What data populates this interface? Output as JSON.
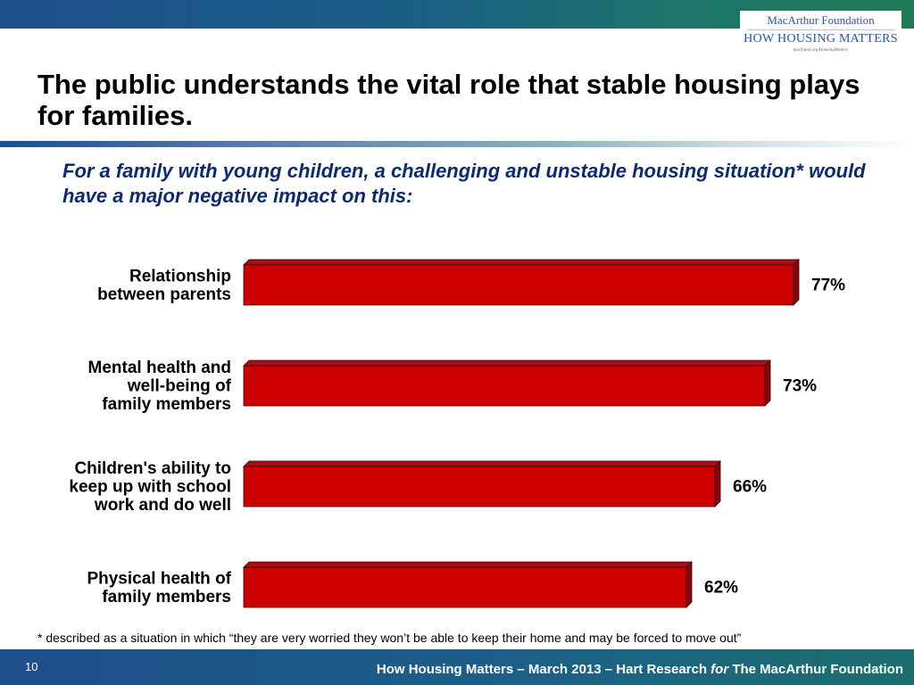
{
  "header": {
    "logo": {
      "foundation": "MacArthur Foundation",
      "program": "HOW HOUSING MATTERS",
      "url": "macfound.org/HousingMatters"
    }
  },
  "slide": {
    "title": "The public understands the vital role that stable housing plays for families.",
    "footnote": "* described as a situation in which “they are very worried they won’t be able to keep their home and may be forced to move out”"
  },
  "footer": {
    "page_number": "10",
    "credit_prefix": "How Housing Matters – March 2013 – Hart Research ",
    "credit_for": "for",
    "credit_suffix": " The MacArthur Foundation"
  },
  "colors": {
    "bar_front": "#cc0000",
    "bar_top": "#a80f14",
    "bar_side": "#7a0a0d",
    "subtitle": "#0e2a6e"
  },
  "chart_data": {
    "type": "bar",
    "orientation": "horizontal",
    "title": "For a family with young children, a challenging and unstable housing situation* would have a major negative impact on this:",
    "categories": [
      [
        "Relationship",
        "between parents"
      ],
      [
        "Mental health and",
        "well-being of",
        "family members"
      ],
      [
        "Children's ability to",
        "keep up with school",
        "work and do well"
      ],
      [
        "Physical health of",
        "family members"
      ]
    ],
    "values": [
      77,
      73,
      66,
      62
    ],
    "value_labels": [
      "77%",
      "73%",
      "66%",
      "62%"
    ],
    "unit": "%",
    "xlim": [
      0,
      100
    ],
    "grid": false,
    "legend": "none",
    "bar_style": "3d"
  }
}
